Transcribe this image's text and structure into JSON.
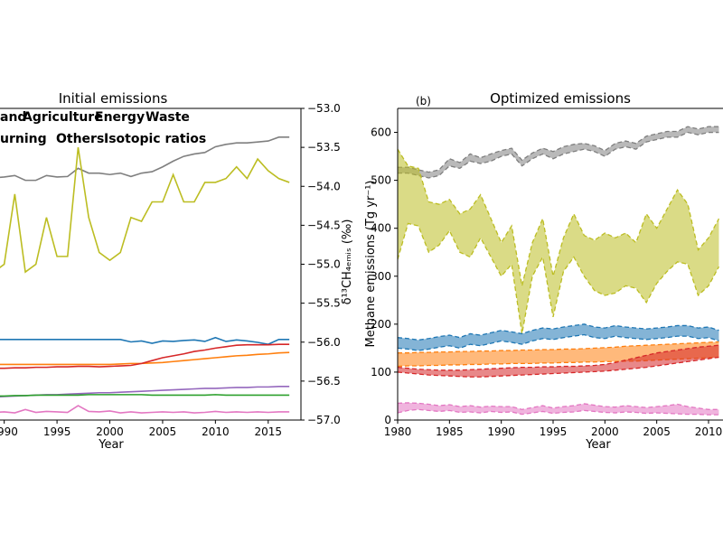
{
  "chart_data": [
    {
      "type": "line",
      "title": "Initial emissions",
      "xlabel": "Year",
      "y2label": "δ¹³CH₄ₑₘᵢₛ (‰)",
      "x": [
        1989,
        1990,
        1991,
        1992,
        1993,
        1994,
        1995,
        1996,
        1997,
        1998,
        1999,
        2000,
        2001,
        2002,
        2003,
        2004,
        2005,
        2006,
        2007,
        2008,
        2009,
        2010,
        2011,
        2012,
        2013,
        2014,
        2015,
        2016,
        2017
      ],
      "xlim": [
        1989.6,
        2018.1
      ],
      "xticks": [
        1990,
        1995,
        2000,
        2005,
        2010,
        2015
      ],
      "ylim": [
        0,
        650
      ],
      "y2lim": [
        -57,
        -53
      ],
      "y2ticks": [
        {
          "value": -53,
          "label": "−53.0"
        },
        {
          "value": -53.5,
          "label": "−53.5"
        },
        {
          "value": -54,
          "label": "−54.0"
        },
        {
          "value": -54.5,
          "label": "−54.5"
        },
        {
          "value": -55,
          "label": "−55.0"
        },
        {
          "value": -55.5,
          "label": "−55.5"
        },
        {
          "value": -56,
          "label": "−56.0"
        },
        {
          "value": -56.5,
          "label": "−56.5"
        },
        {
          "value": -57,
          "label": "−57.0"
        }
      ],
      "series": [
        {
          "color": "#7f7f7f",
          "values": [
            505,
            507,
            510,
            500,
            500,
            510,
            507,
            508,
            525,
            515,
            515,
            512,
            515,
            508,
            515,
            518,
            528,
            540,
            550,
            555,
            558,
            570,
            575,
            578,
            578,
            580,
            582,
            590,
            590
          ]
        },
        {
          "name": "and",
          "color": "#1f77b4",
          "values": [
            168,
            168,
            168,
            168,
            168,
            168,
            168,
            168,
            168,
            168,
            168,
            168,
            168,
            163,
            165,
            160,
            165,
            164,
            166,
            167,
            164,
            172,
            164,
            167,
            165,
            162,
            158,
            168,
            168
          ]
        },
        {
          "name": "Agriculture",
          "color": "#ff7f0e",
          "values": [
            116,
            116,
            116,
            116,
            116,
            116,
            116,
            116,
            116,
            116,
            116,
            116,
            117,
            118,
            118,
            119,
            120,
            122,
            124,
            126,
            128,
            130,
            132,
            134,
            135,
            137,
            138,
            140,
            141
          ]
        },
        {
          "name": "Energy",
          "color": "#d62728",
          "values": [
            108,
            108,
            109,
            109,
            110,
            110,
            111,
            111,
            112,
            112,
            111,
            112,
            113,
            114,
            118,
            124,
            130,
            134,
            138,
            143,
            146,
            150,
            153,
            156,
            157,
            157,
            157,
            158,
            158
          ]
        },
        {
          "name": "Waste",
          "color": "#9467bd",
          "values": [
            48,
            49,
            50,
            51,
            52,
            53,
            53,
            54,
            55,
            56,
            57,
            57,
            58,
            59,
            60,
            61,
            62,
            63,
            64,
            65,
            66,
            66,
            67,
            68,
            68,
            69,
            69,
            70,
            70
          ]
        },
        {
          "name": "urning",
          "color": "#e377c2",
          "values": [
            16,
            17,
            15,
            22,
            16,
            18,
            17,
            16,
            30,
            18,
            17,
            19,
            15,
            17,
            15,
            16,
            17,
            16,
            17,
            15,
            16,
            18,
            16,
            17,
            16,
            17,
            16,
            17,
            17
          ]
        },
        {
          "name": "Others",
          "color": "#2ca02c",
          "values": [
            50,
            50,
            51,
            51,
            52,
            52,
            52,
            52,
            52,
            53,
            53,
            53,
            53,
            53,
            53,
            52,
            52,
            52,
            52,
            52,
            52,
            53,
            52,
            52,
            52,
            52,
            52,
            52,
            52
          ]
        },
        {
          "name": "Isotopic ratios",
          "color": "#bcbd22",
          "axis": "y2",
          "values": [
            -55.1,
            -55.0,
            -54.1,
            -55.1,
            -55.0,
            -54.4,
            -54.9,
            -54.9,
            -53.5,
            -54.4,
            -54.85,
            -54.95,
            -54.85,
            -54.4,
            -54.45,
            -54.2,
            -54.2,
            -53.85,
            -54.2,
            -54.2,
            -53.95,
            -53.95,
            -53.9,
            -53.75,
            -53.9,
            -53.65,
            -53.8,
            -53.9,
            -53.95
          ]
        }
      ]
    },
    {
      "type": "band",
      "title": "Optimized emissions",
      "panel_label": "(b)",
      "xlabel": "Year",
      "ylabel": "Methane emissions (Tg yr⁻¹)",
      "x": [
        1980,
        1981,
        1982,
        1983,
        1984,
        1985,
        1986,
        1987,
        1988,
        1989,
        1990,
        1991,
        1992,
        1993,
        1994,
        1995,
        1996,
        1997,
        1998,
        1999,
        2000,
        2001,
        2002,
        2003,
        2004,
        2005,
        2006,
        2007,
        2008,
        2009,
        2010,
        2011
      ],
      "xlim": [
        1980,
        2011.4
      ],
      "xticks": [
        1980,
        1985,
        1990,
        1995,
        2000,
        2005,
        2010
      ],
      "ylim": [
        0,
        650
      ],
      "yticks": [
        0,
        100,
        200,
        300,
        400,
        500,
        600
      ],
      "series": [
        {
          "color": "#7f7f7f",
          "lower": [
            515,
            515,
            510,
            505,
            510,
            530,
            525,
            540,
            535,
            540,
            550,
            555,
            530,
            545,
            555,
            545,
            555,
            560,
            565,
            560,
            550,
            565,
            570,
            565,
            580,
            585,
            590,
            590,
            600,
            595,
            600,
            600
          ],
          "upper": [
            527,
            527,
            522,
            517,
            522,
            545,
            537,
            555,
            547,
            555,
            562,
            567,
            542,
            557,
            567,
            560,
            570,
            575,
            577,
            572,
            562,
            577,
            582,
            577,
            592,
            597,
            602,
            602,
            612,
            607,
            612,
            612
          ]
        },
        {
          "color": "#bcbd22",
          "lower": [
            335,
            410,
            405,
            350,
            365,
            395,
            350,
            340,
            380,
            340,
            300,
            325,
            180,
            300,
            340,
            215,
            310,
            340,
            300,
            270,
            260,
            265,
            280,
            275,
            245,
            285,
            310,
            330,
            325,
            260,
            280,
            320
          ],
          "upper": [
            565,
            530,
            525,
            455,
            450,
            460,
            430,
            440,
            470,
            420,
            370,
            405,
            280,
            370,
            420,
            300,
            380,
            430,
            385,
            375,
            390,
            380,
            390,
            370,
            430,
            400,
            440,
            480,
            450,
            355,
            380,
            420
          ]
        },
        {
          "color": "#1f77b4",
          "lower": [
            150,
            148,
            145,
            148,
            152,
            155,
            150,
            158,
            155,
            160,
            165,
            162,
            158,
            165,
            170,
            168,
            172,
            175,
            178,
            172,
            170,
            175,
            172,
            170,
            168,
            170,
            172,
            175,
            175,
            170,
            172,
            165
          ],
          "upper": [
            172,
            170,
            167,
            170,
            174,
            177,
            172,
            180,
            177,
            182,
            187,
            184,
            180,
            187,
            192,
            190,
            194,
            197,
            200,
            194,
            192,
            197,
            194,
            192,
            190,
            192,
            194,
            197,
            197,
            192,
            194,
            187
          ]
        },
        {
          "color": "#ff7f0e",
          "lower": [
            112,
            113,
            113,
            114,
            114,
            115,
            115,
            116,
            116,
            117,
            117,
            118,
            118,
            118,
            119,
            119,
            120,
            120,
            121,
            121,
            122,
            122,
            123,
            123,
            124,
            125,
            126,
            127,
            128,
            129,
            130,
            131
          ],
          "upper": [
            140,
            140,
            141,
            141,
            142,
            142,
            143,
            143,
            144,
            144,
            145,
            145,
            146,
            146,
            147,
            147,
            148,
            148,
            149,
            150,
            151,
            152,
            154,
            155,
            156,
            157,
            158,
            159,
            160,
            161,
            162,
            163
          ]
        },
        {
          "color": "#d62728",
          "lower": [
            100,
            98,
            96,
            94,
            93,
            92,
            91,
            90,
            90,
            91,
            92,
            93,
            94,
            95,
            96,
            97,
            98,
            99,
            100,
            101,
            102,
            104,
            106,
            108,
            110,
            113,
            116,
            119,
            122,
            125,
            128,
            131
          ],
          "upper": [
            110,
            108,
            106,
            105,
            104,
            104,
            104,
            105,
            106,
            107,
            108,
            109,
            110,
            110,
            111,
            111,
            112,
            112,
            113,
            114,
            116,
            120,
            125,
            130,
            135,
            140,
            143,
            146,
            149,
            152,
            154,
            156
          ]
        },
        {
          "color": "#e377c2",
          "lower": [
            15,
            20,
            22,
            20,
            18,
            20,
            16,
            17,
            15,
            18,
            16,
            17,
            12,
            15,
            18,
            14,
            16,
            17,
            20,
            18,
            16,
            15,
            17,
            16,
            14,
            15,
            14,
            13,
            12,
            12,
            11,
            11
          ],
          "upper": [
            35,
            36,
            35,
            33,
            30,
            32,
            28,
            30,
            27,
            29,
            28,
            28,
            22,
            26,
            30,
            25,
            28,
            30,
            34,
            31,
            28,
            27,
            30,
            28,
            26,
            28,
            30,
            33,
            28,
            25,
            22,
            22
          ]
        }
      ]
    }
  ]
}
